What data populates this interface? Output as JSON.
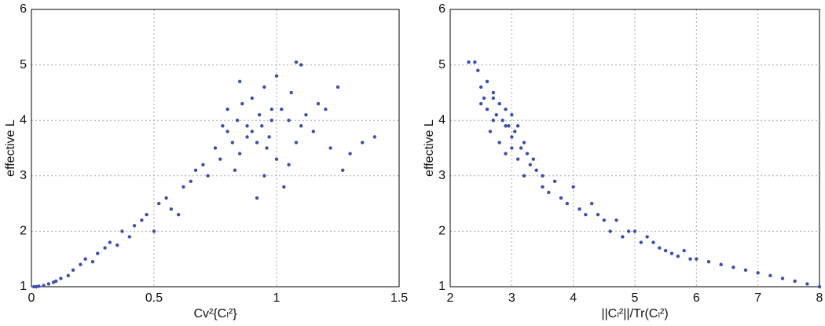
{
  "chart_data": [
    {
      "type": "scatter",
      "color": "#3a4fb5",
      "grid": true,
      "xlabel": "Cv²{Cₗ²}",
      "ylabel": "effective L",
      "xlim": [
        0,
        1.5
      ],
      "ylim": [
        1,
        6
      ],
      "xticks": [
        0,
        0.5,
        1,
        1.5
      ],
      "yticks": [
        1,
        2,
        3,
        4,
        5,
        6
      ],
      "x": [
        0.01,
        0.02,
        0.03,
        0.05,
        0.07,
        0.09,
        0.1,
        0.12,
        0.15,
        0.17,
        0.2,
        0.22,
        0.25,
        0.27,
        0.3,
        0.32,
        0.35,
        0.37,
        0.4,
        0.42,
        0.45,
        0.47,
        0.5,
        0.52,
        0.55,
        0.57,
        0.6,
        0.62,
        0.65,
        0.67,
        0.7,
        0.72,
        0.75,
        0.77,
        0.8,
        0.8,
        0.82,
        0.84,
        0.85,
        0.86,
        0.88,
        0.88,
        0.9,
        0.9,
        0.92,
        0.93,
        0.94,
        0.95,
        0.96,
        0.97,
        0.98,
        1.0,
        1.0,
        1.02,
        1.03,
        1.05,
        1.06,
        1.08,
        1.1,
        1.1,
        1.12,
        1.15,
        1.17,
        1.2,
        1.22,
        1.25,
        1.27,
        1.3,
        1.35,
        1.4,
        0.78,
        0.85,
        0.92,
        0.98,
        1.05,
        1.08,
        0.83,
        0.95
      ],
      "values": [
        1.0,
        1.0,
        1.01,
        1.02,
        1.05,
        1.08,
        1.1,
        1.15,
        1.2,
        1.3,
        1.4,
        1.5,
        1.45,
        1.6,
        1.7,
        1.8,
        1.75,
        2.0,
        1.9,
        2.1,
        2.2,
        2.3,
        2.0,
        2.5,
        2.6,
        2.4,
        2.3,
        2.8,
        2.9,
        3.1,
        3.2,
        3.0,
        3.5,
        3.3,
        3.8,
        4.2,
        3.6,
        4.0,
        3.4,
        4.3,
        3.7,
        3.9,
        3.8,
        4.4,
        2.6,
        4.1,
        3.9,
        4.6,
        3.5,
        3.7,
        4.0,
        4.8,
        3.3,
        4.2,
        2.8,
        4.0,
        4.5,
        3.6,
        3.9,
        5.0,
        4.1,
        3.8,
        4.3,
        4.2,
        3.5,
        4.6,
        3.1,
        3.4,
        3.6,
        3.7,
        3.9,
        4.7,
        3.6,
        4.2,
        3.2,
        5.05,
        3.1,
        3.0
      ]
    },
    {
      "type": "scatter",
      "color": "#3a4fb5",
      "grid": true,
      "xlabel": "||Cₗ²||/Tr(Cₗ²)",
      "ylabel": "effective L",
      "xlim": [
        2,
        8
      ],
      "ylim": [
        1,
        6
      ],
      "xticks": [
        2,
        3,
        4,
        5,
        6,
        7,
        8
      ],
      "yticks": [
        1,
        2,
        3,
        4,
        5,
        6
      ],
      "x": [
        2.3,
        2.4,
        2.45,
        2.5,
        2.55,
        2.6,
        2.6,
        2.65,
        2.7,
        2.7,
        2.75,
        2.8,
        2.8,
        2.85,
        2.9,
        2.9,
        2.95,
        3.0,
        3.0,
        3.05,
        3.1,
        3.1,
        3.15,
        3.2,
        3.2,
        3.25,
        3.3,
        3.35,
        3.4,
        3.5,
        3.5,
        3.6,
        3.7,
        3.8,
        3.9,
        4.0,
        4.1,
        4.2,
        4.3,
        4.4,
        4.5,
        4.6,
        4.7,
        4.8,
        4.9,
        5.0,
        5.1,
        5.2,
        5.3,
        5.4,
        5.5,
        5.6,
        5.7,
        5.8,
        5.9,
        6.0,
        6.2,
        6.4,
        6.6,
        6.8,
        7.0,
        7.2,
        7.4,
        7.6,
        7.8,
        8.0,
        2.5,
        2.7,
        2.9,
        3.0
      ],
      "values": [
        5.05,
        5.05,
        4.9,
        4.6,
        4.4,
        4.7,
        4.2,
        3.8,
        4.5,
        4.0,
        4.1,
        4.3,
        3.6,
        4.0,
        4.2,
        3.4,
        3.9,
        4.1,
        3.7,
        3.8,
        3.9,
        3.3,
        3.5,
        3.6,
        3.0,
        3.4,
        3.2,
        3.3,
        3.1,
        2.8,
        3.0,
        2.7,
        2.9,
        2.6,
        2.5,
        2.8,
        2.4,
        2.3,
        2.5,
        2.3,
        2.2,
        2.0,
        2.2,
        1.9,
        2.0,
        2.0,
        1.8,
        1.9,
        1.8,
        1.7,
        1.65,
        1.6,
        1.55,
        1.65,
        1.5,
        1.5,
        1.45,
        1.4,
        1.35,
        1.3,
        1.25,
        1.2,
        1.15,
        1.1,
        1.05,
        1.0,
        4.3,
        4.4,
        3.9,
        3.5
      ]
    }
  ]
}
